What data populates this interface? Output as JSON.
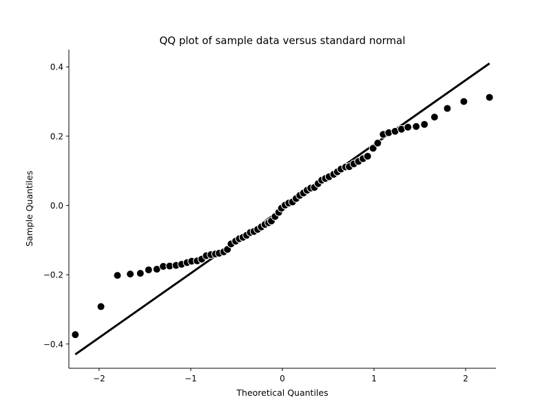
{
  "chart_data": {
    "type": "scatter",
    "title": "QQ plot of sample data versus standard normal",
    "xlabel": "Theoretical Quantiles",
    "ylabel": "Sample Quantiles",
    "xlim": [
      -2.33,
      2.33
    ],
    "ylim": [
      -0.47,
      0.45
    ],
    "xticks": [
      -2,
      -1,
      0,
      1,
      2
    ],
    "xtick_labels": [
      "−2",
      "−1",
      "0",
      "1",
      "2"
    ],
    "yticks": [
      -0.4,
      -0.2,
      0.0,
      0.2,
      0.4
    ],
    "ytick_labels": [
      "−0.4",
      "−0.2",
      "0.0",
      "0.2",
      "0.4"
    ],
    "grid": false,
    "spines": [
      "left",
      "bottom"
    ],
    "marker_color": "#000000",
    "marker_edge_color": "#ffffff",
    "line_color": "#000000",
    "reference_line": {
      "x": [
        -2.26,
        2.26
      ],
      "y": [
        -0.43,
        0.41
      ]
    },
    "series": [
      {
        "points": [
          [
            -2.26,
            -0.373
          ],
          [
            -1.98,
            -0.292
          ],
          [
            -1.8,
            -0.202
          ],
          [
            -1.66,
            -0.198
          ],
          [
            -1.55,
            -0.196
          ],
          [
            -1.46,
            -0.186
          ],
          [
            -1.37,
            -0.184
          ],
          [
            -1.3,
            -0.176
          ],
          [
            -1.23,
            -0.175
          ],
          [
            -1.16,
            -0.173
          ],
          [
            -1.1,
            -0.17
          ],
          [
            -1.04,
            -0.165
          ],
          [
            -0.99,
            -0.161
          ],
          [
            -0.93,
            -0.16
          ],
          [
            -0.88,
            -0.155
          ],
          [
            -0.83,
            -0.145
          ],
          [
            -0.78,
            -0.142
          ],
          [
            -0.73,
            -0.14
          ],
          [
            -0.69,
            -0.138
          ],
          [
            -0.64,
            -0.134
          ],
          [
            -0.6,
            -0.127
          ],
          [
            -0.56,
            -0.111
          ],
          [
            -0.51,
            -0.103
          ],
          [
            -0.47,
            -0.096
          ],
          [
            -0.43,
            -0.092
          ],
          [
            -0.39,
            -0.086
          ],
          [
            -0.35,
            -0.078
          ],
          [
            -0.31,
            -0.075
          ],
          [
            -0.27,
            -0.069
          ],
          [
            -0.23,
            -0.062
          ],
          [
            -0.19,
            -0.055
          ],
          [
            -0.15,
            -0.05
          ],
          [
            -0.12,
            -0.045
          ],
          [
            -0.08,
            -0.032
          ],
          [
            -0.04,
            -0.02
          ],
          [
            -0.01,
            -0.008
          ],
          [
            0.03,
            0.001
          ],
          [
            0.07,
            0.007
          ],
          [
            0.11,
            0.01
          ],
          [
            0.15,
            0.02
          ],
          [
            0.19,
            0.029
          ],
          [
            0.23,
            0.036
          ],
          [
            0.27,
            0.044
          ],
          [
            0.31,
            0.05
          ],
          [
            0.35,
            0.052
          ],
          [
            0.39,
            0.063
          ],
          [
            0.43,
            0.073
          ],
          [
            0.47,
            0.078
          ],
          [
            0.51,
            0.083
          ],
          [
            0.56,
            0.09
          ],
          [
            0.6,
            0.097
          ],
          [
            0.64,
            0.105
          ],
          [
            0.69,
            0.111
          ],
          [
            0.73,
            0.112
          ],
          [
            0.78,
            0.12
          ],
          [
            0.83,
            0.127
          ],
          [
            0.88,
            0.135
          ],
          [
            0.93,
            0.142
          ],
          [
            0.99,
            0.165
          ],
          [
            1.04,
            0.18
          ],
          [
            1.1,
            0.205
          ],
          [
            1.16,
            0.21
          ],
          [
            1.23,
            0.214
          ],
          [
            1.3,
            0.22
          ],
          [
            1.37,
            0.226
          ],
          [
            1.46,
            0.228
          ],
          [
            1.55,
            0.234
          ],
          [
            1.66,
            0.255
          ],
          [
            1.8,
            0.28
          ],
          [
            1.98,
            0.3
          ],
          [
            2.26,
            0.312
          ]
        ]
      }
    ]
  }
}
